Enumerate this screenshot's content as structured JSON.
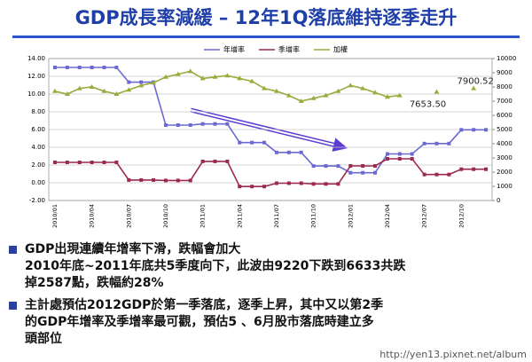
{
  "slide": {
    "title": "GDP成長率減緩 – 12年1Q落底維持逐季走升",
    "bullets": [
      [
        "GDP出現連續年增率下滑，跌幅會加大",
        "2010年底~2011年底共5季度向下，此波由9220下跌到6633共跌",
        "掉2587點，跌幅約28%"
      ],
      [
        "主計處預估2012GDP於第一季落底，逐季上昇，其中又以第2季",
        "的GDP年增率及季增率最可觀，預估5 、6月股市落底時建立多",
        "頭部位"
      ]
    ],
    "watermark": "http://yen13.pixnet.net/album"
  },
  "chart_data": {
    "type": "line",
    "categories": [
      "2010/01",
      null,
      null,
      "2010/04",
      null,
      null,
      "2010/07",
      null,
      null,
      "2010/10",
      null,
      null,
      "2011/01",
      null,
      null,
      "2011/04",
      null,
      null,
      "2011/07",
      null,
      null,
      "2011/10",
      null,
      null,
      "2012/01",
      null,
      null,
      "2012/04",
      null,
      null,
      "2012/07",
      null,
      null,
      "2012/10",
      null,
      null
    ],
    "series": [
      {
        "name": "年增率",
        "color": "#6a6ad2",
        "marker": "square",
        "values": [
          13,
          13,
          13,
          13,
          13,
          13,
          11.34,
          11.34,
          11.34,
          6.5,
          6.5,
          6.5,
          6.63,
          6.63,
          6.63,
          4.53,
          4.53,
          4.53,
          3.42,
          3.42,
          3.42,
          1.89,
          1.89,
          1.89,
          1.13,
          1.13,
          1.13,
          3.25,
          3.25,
          3.25,
          4.42,
          4.42,
          4.42,
          5.97,
          5.97,
          5.97
        ]
      },
      {
        "name": "季增率",
        "color": "#9b2a4d",
        "marker": "square",
        "values": [
          2.3,
          2.3,
          2.3,
          2.3,
          2.3,
          2.3,
          0.31,
          0.31,
          0.31,
          0.26,
          0.26,
          0.26,
          2.41,
          2.41,
          2.41,
          -0.42,
          -0.42,
          -0.42,
          -0.05,
          -0.05,
          -0.05,
          -0.13,
          -0.13,
          -0.13,
          1.9,
          1.9,
          1.9,
          2.7,
          2.7,
          2.7,
          0.93,
          0.93,
          0.93,
          1.53,
          1.53,
          1.53
        ]
      },
      {
        "name": "加權",
        "color": "#9aab3c",
        "marker": "triangle",
        "axis": "y2",
        "values": [
          7700,
          7500,
          7900,
          8000,
          7700,
          7500,
          7800,
          8100,
          8300,
          8700,
          8900,
          9100,
          8600,
          8700,
          8800,
          8600,
          8400,
          7900,
          7700,
          7400,
          7000,
          7200,
          7400,
          7700,
          8100,
          7900,
          7600,
          7300,
          7400,
          null,
          null,
          7653.5,
          null,
          null,
          7900.52,
          null
        ]
      }
    ],
    "annotations": [
      "7653.50",
      "7900.52"
    ],
    "ylim": [
      -2,
      14
    ],
    "yticks": [
      {
        "value": -2,
        "label": "-2.00"
      },
      {
        "value": 0,
        "label": "0.00"
      },
      {
        "value": 2,
        "label": "2.00"
      },
      {
        "value": 4,
        "label": "4.00"
      },
      {
        "value": 6,
        "label": "6.00"
      },
      {
        "value": 8,
        "label": "8.00"
      },
      {
        "value": 10,
        "label": "10.00"
      },
      {
        "value": 12,
        "label": "12.00"
      },
      {
        "value": 14,
        "label": "14.00"
      }
    ],
    "y2lim": [
      0,
      10000
    ],
    "y2ticks": [
      0,
      1000,
      2000,
      3000,
      4000,
      5000,
      6000,
      7000,
      8000,
      9000,
      10000
    ],
    "grid": true,
    "legend": "top"
  }
}
